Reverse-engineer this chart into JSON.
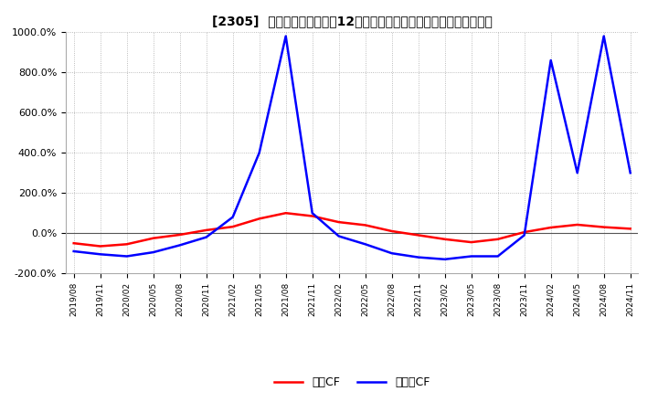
{
  "title": "[2305]  キャッシュフローの12か月移動合計の対前年同期増減率の推移",
  "legend_labels": [
    "営業CF",
    "フリーCF"
  ],
  "line_colors": [
    "#ff0000",
    "#0000ff"
  ],
  "ylim": [
    -200,
    1000
  ],
  "yticks": [
    -200,
    0,
    200,
    400,
    600,
    800,
    1000
  ],
  "ytick_labels": [
    "-200.0%",
    "0.0%",
    "200.0%",
    "400.0%",
    "600.0%",
    "800.0%",
    "1000.0%"
  ],
  "background_color": "#ffffff",
  "plot_bg_color": "#ffffff",
  "grid_color": "#aaaaaa",
  "x_labels": [
    "2019/08",
    "2019/11",
    "2020/02",
    "2020/05",
    "2020/08",
    "2020/11",
    "2021/02",
    "2021/05",
    "2021/08",
    "2021/11",
    "2022/02",
    "2022/05",
    "2022/08",
    "2022/11",
    "2023/02",
    "2023/05",
    "2023/08",
    "2023/11",
    "2024/02",
    "2024/05",
    "2024/08",
    "2024/11"
  ],
  "eigyo_cf": [
    -50,
    -65,
    -55,
    -25,
    -8,
    15,
    32,
    72,
    100,
    85,
    55,
    40,
    10,
    -10,
    -30,
    -45,
    -30,
    5,
    28,
    42,
    30,
    22
  ],
  "free_cf": [
    -90,
    -105,
    -115,
    -95,
    -60,
    -20,
    80,
    400,
    980,
    100,
    -15,
    -55,
    -100,
    -120,
    -130,
    -115,
    -115,
    -10,
    860,
    300,
    980,
    300
  ]
}
